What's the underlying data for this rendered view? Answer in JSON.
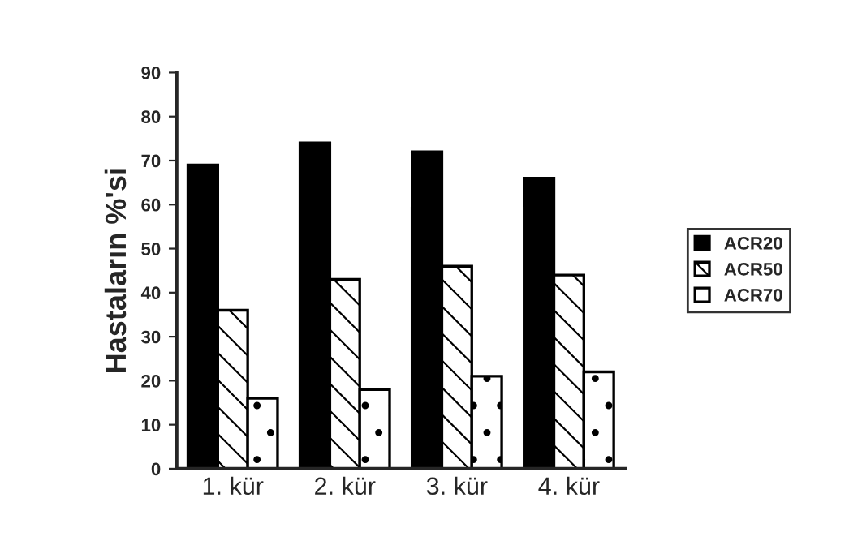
{
  "chart_data": {
    "type": "bar",
    "ylabel": "Hastaların %'si",
    "categories": [
      "1. kür",
      "2. kür",
      "3. kür",
      "4. kür"
    ],
    "series": [
      {
        "name": "ACR20",
        "color": "#000000",
        "values": [
          69,
          74,
          72,
          66
        ]
      },
      {
        "name": "ACR50",
        "color": "#ffffff",
        "values": [
          36,
          43,
          46,
          44
        ]
      },
      {
        "name": "ACR70",
        "color": "#ffffff",
        "values": [
          16,
          18,
          21,
          22
        ]
      }
    ],
    "ylim": [
      0,
      90
    ],
    "yticks": [
      0,
      10,
      20,
      30,
      40,
      50,
      60,
      70,
      80,
      90
    ],
    "grid": false,
    "legend": "right"
  }
}
